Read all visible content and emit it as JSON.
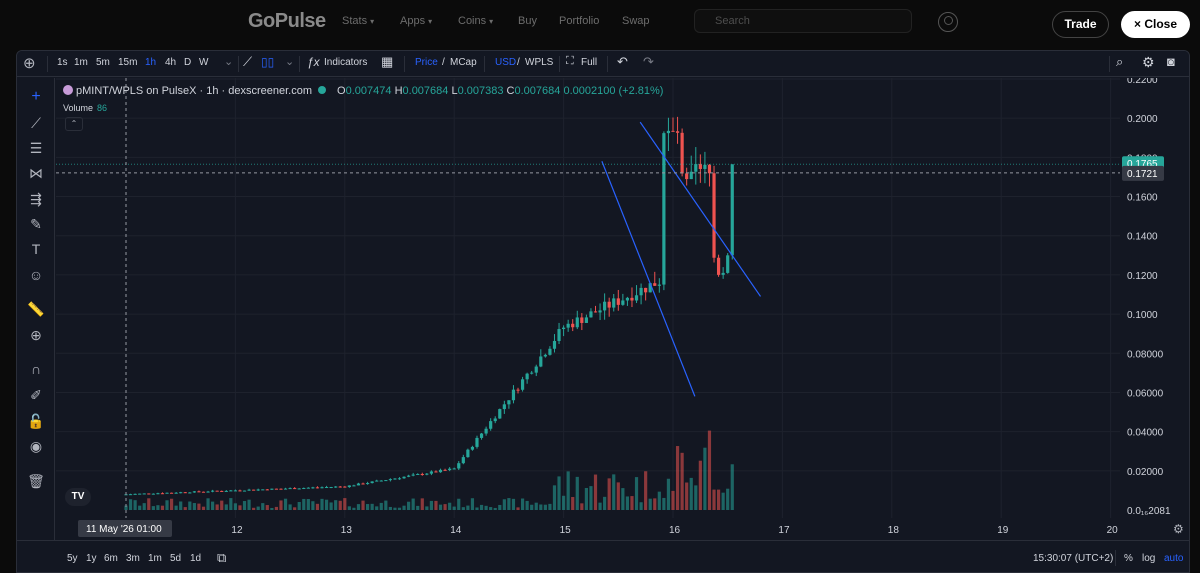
{
  "nav": {
    "brand": "GoPulse",
    "items": [
      {
        "label": "Stats",
        "chevron": true,
        "x": 342
      },
      {
        "label": "Apps",
        "chevron": true,
        "x": 400
      },
      {
        "label": "Coins",
        "chevron": true,
        "x": 458
      },
      {
        "label": "Buy",
        "chevron": false,
        "x": 518
      },
      {
        "label": "Portfolio",
        "chevron": false,
        "x": 559
      },
      {
        "label": "Swap",
        "chevron": false,
        "x": 622
      }
    ],
    "search_placeholder": "Search",
    "trade_label": "Trade",
    "close_label": "Close",
    "close_glyph": "×"
  },
  "toolbar": {
    "intervals": [
      "1s",
      "1m",
      "5m",
      "15m",
      "1h",
      "4h",
      "D",
      "W"
    ],
    "active_interval": "1h",
    "indicators_label": "Indicators",
    "price_label": "Price",
    "price_sep": "/",
    "mcap_label": "MCap",
    "usd_label": "USD",
    "wpls_label": "WPLS",
    "full_label": "Full"
  },
  "legend": {
    "symbol": "pMINT/WPLS on PulseX · 1h · dexscreener.com",
    "o_label": "O",
    "o_value": "0.007474",
    "h_label": "H",
    "h_value": "0.007684",
    "l_label": "L",
    "l_value": "0.007383",
    "c_label": "C",
    "c_value": "0.007684",
    "change": "0.0002100 (+2.81%)",
    "volume_label": "Volume",
    "volume_value": "86"
  },
  "price_axis": {
    "labels": [
      "0.2200",
      "0.2000",
      "0.1800",
      "0.1600",
      "0.1400",
      "0.1200",
      "0.1000",
      "0.08000",
      "0.06000",
      "0.04000",
      "0.02000",
      "0.0₁₆2081"
    ],
    "current_badge": "0.1765",
    "crosshair_badge": "0.1721"
  },
  "time_axis": {
    "labels": [
      "12",
      "13",
      "14",
      "15",
      "16",
      "17",
      "18",
      "19",
      "20"
    ],
    "crosshair_label": "11 May '26   01:00"
  },
  "bottombar": {
    "ranges": [
      "5y",
      "1y",
      "6m",
      "3m",
      "1m",
      "5d",
      "1d"
    ],
    "clock": "15:30:07 (UTC+2)",
    "pct_label": "%",
    "log_label": "log",
    "auto_label": "auto"
  },
  "tv_logo": "TV",
  "colors": {
    "up": "#26a69a",
    "down": "#ef5350",
    "trendline": "#2962ff",
    "background": "#131722"
  },
  "chart_data": {
    "type": "candlestick",
    "pair": "pMINT/WPLS",
    "interval": "1h",
    "x_range": [
      "2026-05-11",
      "2026-05-20"
    ],
    "ylim": [
      0,
      0.22
    ],
    "candles_daily_summary": [
      {
        "day": "11",
        "open": 0.006,
        "close": 0.008
      },
      {
        "day": "12",
        "open": 0.008,
        "close": 0.01
      },
      {
        "day": "13",
        "open": 0.01,
        "close": 0.012
      },
      {
        "day": "14",
        "open": 0.012,
        "close": 0.021
      },
      {
        "day": "15",
        "open": 0.021,
        "close": 0.093
      },
      {
        "day": "16",
        "open": 0.093,
        "close": 0.12
      },
      {
        "day": "16.6",
        "open": 0.12,
        "close": 0.1765
      }
    ],
    "trendlines": [
      {
        "from": [
          15.7,
          0.198
        ],
        "to": [
          16.8,
          0.109
        ]
      },
      {
        "from": [
          15.35,
          0.178
        ],
        "to": [
          16.2,
          0.058
        ]
      }
    ]
  }
}
